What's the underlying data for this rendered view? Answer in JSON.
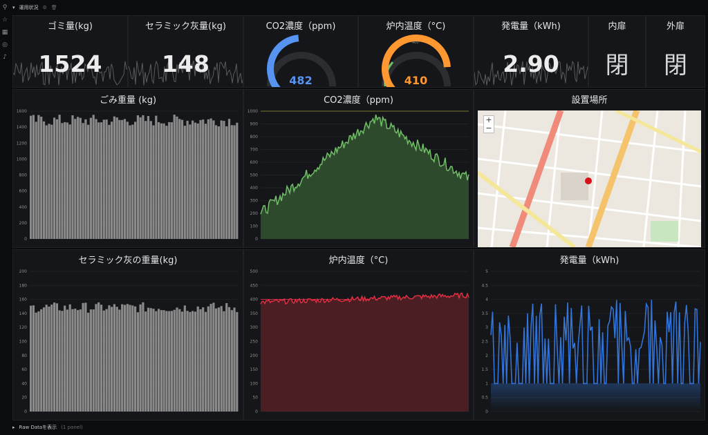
{
  "row_header": {
    "title": "運用状況"
  },
  "footer_row": {
    "title": "Raw Dataを表示",
    "count": "(1 panel)"
  },
  "stats": {
    "gomi": {
      "title": "ゴミ量(kg)",
      "value": "1524"
    },
    "ceramic": {
      "title": "セラミック灰量(kg)",
      "value": "148"
    },
    "co2": {
      "title": "CO2濃度（ppm)",
      "value": "482",
      "fraction": 0.48,
      "color": "#5794f2"
    },
    "temp": {
      "title": "炉内温度（°C)",
      "value": "410",
      "fraction": 0.82,
      "color": "#ff9830",
      "tick": "400"
    },
    "power": {
      "title": "発電量（kWh)",
      "value": "2.90"
    },
    "inner_door": {
      "title": "内扉",
      "value": "閉"
    },
    "outer_door": {
      "title": "外扉",
      "value": "閉"
    }
  },
  "panels": {
    "gomi_chart": {
      "title": "ごみ重量 (kg)"
    },
    "co2_chart": {
      "title": "CO2濃度（ppm)"
    },
    "map": {
      "title": "設置場所"
    },
    "ceramic_chart": {
      "title": "セラミック灰の重量(kg)"
    },
    "temp_chart": {
      "title": "炉内温度（°C)"
    },
    "power_chart": {
      "title": "発電量（kWh)"
    }
  },
  "chart_data": [
    {
      "type": "bar",
      "title": "ごみ重量 (kg)",
      "ylim": [
        0,
        1600
      ],
      "yticks": [
        "1600",
        "1400",
        "1200",
        "1000",
        "800",
        "600",
        "400",
        "200",
        "0"
      ],
      "level": 1500,
      "color": "#8a8a8a"
    },
    {
      "type": "area",
      "title": "CO2濃度（ppm)",
      "ylim": [
        0,
        1000
      ],
      "yticks": [
        "1000",
        "900",
        "800",
        "700",
        "600",
        "500",
        "400",
        "300",
        "200",
        "100",
        "0"
      ],
      "threshold": 1000,
      "start": 200,
      "peak": 950,
      "end": 470,
      "color": "#73bf69"
    },
    {
      "type": "bar",
      "title": "セラミック灰の重量(kg)",
      "ylim": [
        0,
        200
      ],
      "yticks": [
        "200",
        "180",
        "160",
        "140",
        "120",
        "100",
        "80",
        "60",
        "40",
        "20",
        "0"
      ],
      "level": 150,
      "color": "#8a8a8a"
    },
    {
      "type": "area",
      "title": "炉内温度（°C)",
      "ylim": [
        0,
        500
      ],
      "yticks": [
        "500",
        "450",
        "400",
        "350",
        "300",
        "250",
        "200",
        "150",
        "100",
        "50",
        "0"
      ],
      "threshold": 400,
      "start": 390,
      "end": 415,
      "color": "#e02f44"
    },
    {
      "type": "line",
      "title": "発電量（kWh)",
      "ylim": [
        0,
        5
      ],
      "yticks": [
        "5",
        "4.5",
        "4",
        "3.5",
        "3",
        "2.5",
        "2",
        "1.5",
        "1",
        "0.5",
        "0"
      ],
      "low": 1,
      "high": 4,
      "color": "#3274d9"
    }
  ],
  "colors": {
    "background": "#0b0c0e",
    "panel": "#141619",
    "text": "#d8d9da"
  },
  "icons": [
    "search-icon",
    "star-icon",
    "apps-icon",
    "explore-icon",
    "bell-icon",
    "settings-icon"
  ]
}
